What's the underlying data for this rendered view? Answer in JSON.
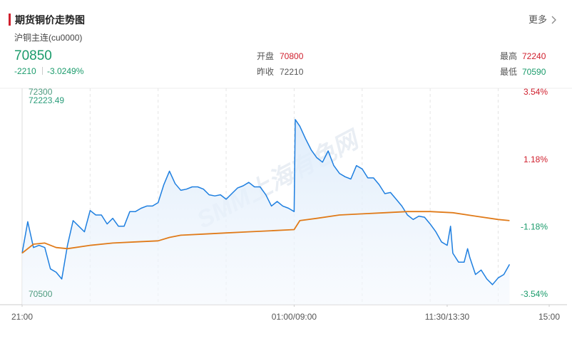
{
  "header": {
    "title": "期货铜价走势图",
    "more": "更多"
  },
  "quote": {
    "name": "沪铜主连(cu0000)",
    "price": 70850,
    "change": -2210,
    "change_pct": "-3.0249%",
    "open_label": "开盘",
    "open": 70800,
    "prev_label": "昨收",
    "prev": 72210,
    "high_label": "最高",
    "high": 72240,
    "low_label": "最低",
    "low": 70590
  },
  "chart_data": {
    "type": "line",
    "xlim": [
      0,
      465
    ],
    "xticks": [
      {
        "value": 0,
        "label": "21:00"
      },
      {
        "value": 240,
        "label": "01:00/09:00"
      },
      {
        "value": 375,
        "label": "11:30/13:30"
      },
      {
        "value": 465,
        "label": "15:00"
      }
    ],
    "xgrid": [
      60,
      120,
      180,
      240,
      300,
      360,
      420
    ],
    "ylim": [
      70500,
      72300
    ],
    "yticks": [
      70500,
      72300
    ],
    "y2lim": [
      -3.54,
      3.54
    ],
    "y2ticks": [
      {
        "value": 3.54,
        "label": "3.54%"
      },
      {
        "value": 1.18,
        "label": "1.18%"
      },
      {
        "value": -1.18,
        "label": "-1.18%"
      },
      {
        "value": -3.54,
        "label": "-3.54%"
      }
    ],
    "up_color": "#d0202e",
    "down_color": "#1a9b6b",
    "note": "72223.49",
    "watermark": "SMM上海有色网",
    "series": [
      {
        "color": "#1e7fe0",
        "x": [
          0,
          5,
          10,
          15,
          20,
          25,
          30,
          35,
          40,
          45,
          50,
          55,
          60,
          65,
          70,
          75,
          80,
          85,
          90,
          95,
          100,
          105,
          110,
          115,
          120,
          125,
          130,
          135,
          140,
          145,
          150,
          155,
          160,
          165,
          170,
          175,
          180,
          185,
          190,
          195,
          200,
          205,
          210,
          215,
          220,
          225,
          230,
          235,
          240,
          241,
          245,
          250,
          255,
          260,
          265,
          270,
          275,
          280,
          285,
          290,
          295,
          300,
          305,
          310,
          315,
          320,
          325,
          330,
          335,
          340,
          345,
          350,
          355,
          360,
          365,
          370,
          375,
          378,
          380,
          385,
          390,
          393,
          395,
          400,
          405,
          410,
          415,
          420,
          425,
          430
        ],
        "values": [
          70870,
          71150,
          70920,
          70940,
          70920,
          70730,
          70700,
          70640,
          70940,
          71160,
          71110,
          71060,
          71250,
          71210,
          71210,
          71130,
          71180,
          71110,
          71110,
          71240,
          71240,
          71270,
          71290,
          71290,
          71320,
          71480,
          71600,
          71490,
          71430,
          71440,
          71460,
          71460,
          71440,
          71390,
          71380,
          71390,
          71350,
          71400,
          71450,
          71470,
          71500,
          71460,
          71460,
          71390,
          71290,
          71330,
          71290,
          71270,
          71240,
          72060,
          72000,
          71890,
          71790,
          71720,
          71680,
          71780,
          71650,
          71580,
          71550,
          71530,
          71650,
          71620,
          71540,
          71540,
          71480,
          71400,
          71410,
          71350,
          71290,
          71210,
          71170,
          71200,
          71190,
          71130,
          71060,
          70970,
          70940,
          71110,
          70870,
          70790,
          70790,
          70910,
          70830,
          70680,
          70720,
          70640,
          70590,
          70650,
          70680,
          70770
        ]
      },
      {
        "color": "#e07b1a",
        "x": [
          0,
          10,
          20,
          30,
          40,
          60,
          80,
          100,
          120,
          130,
          140,
          160,
          180,
          200,
          220,
          240,
          245,
          260,
          280,
          300,
          320,
          340,
          360,
          380,
          400,
          420,
          430
        ],
        "values": [
          70870,
          70950,
          70960,
          70920,
          70910,
          70940,
          70960,
          70970,
          70980,
          71010,
          71030,
          71040,
          71050,
          71060,
          71070,
          71080,
          71160,
          71180,
          71210,
          71220,
          71230,
          71240,
          71240,
          71230,
          71200,
          71170,
          71160
        ]
      }
    ]
  }
}
